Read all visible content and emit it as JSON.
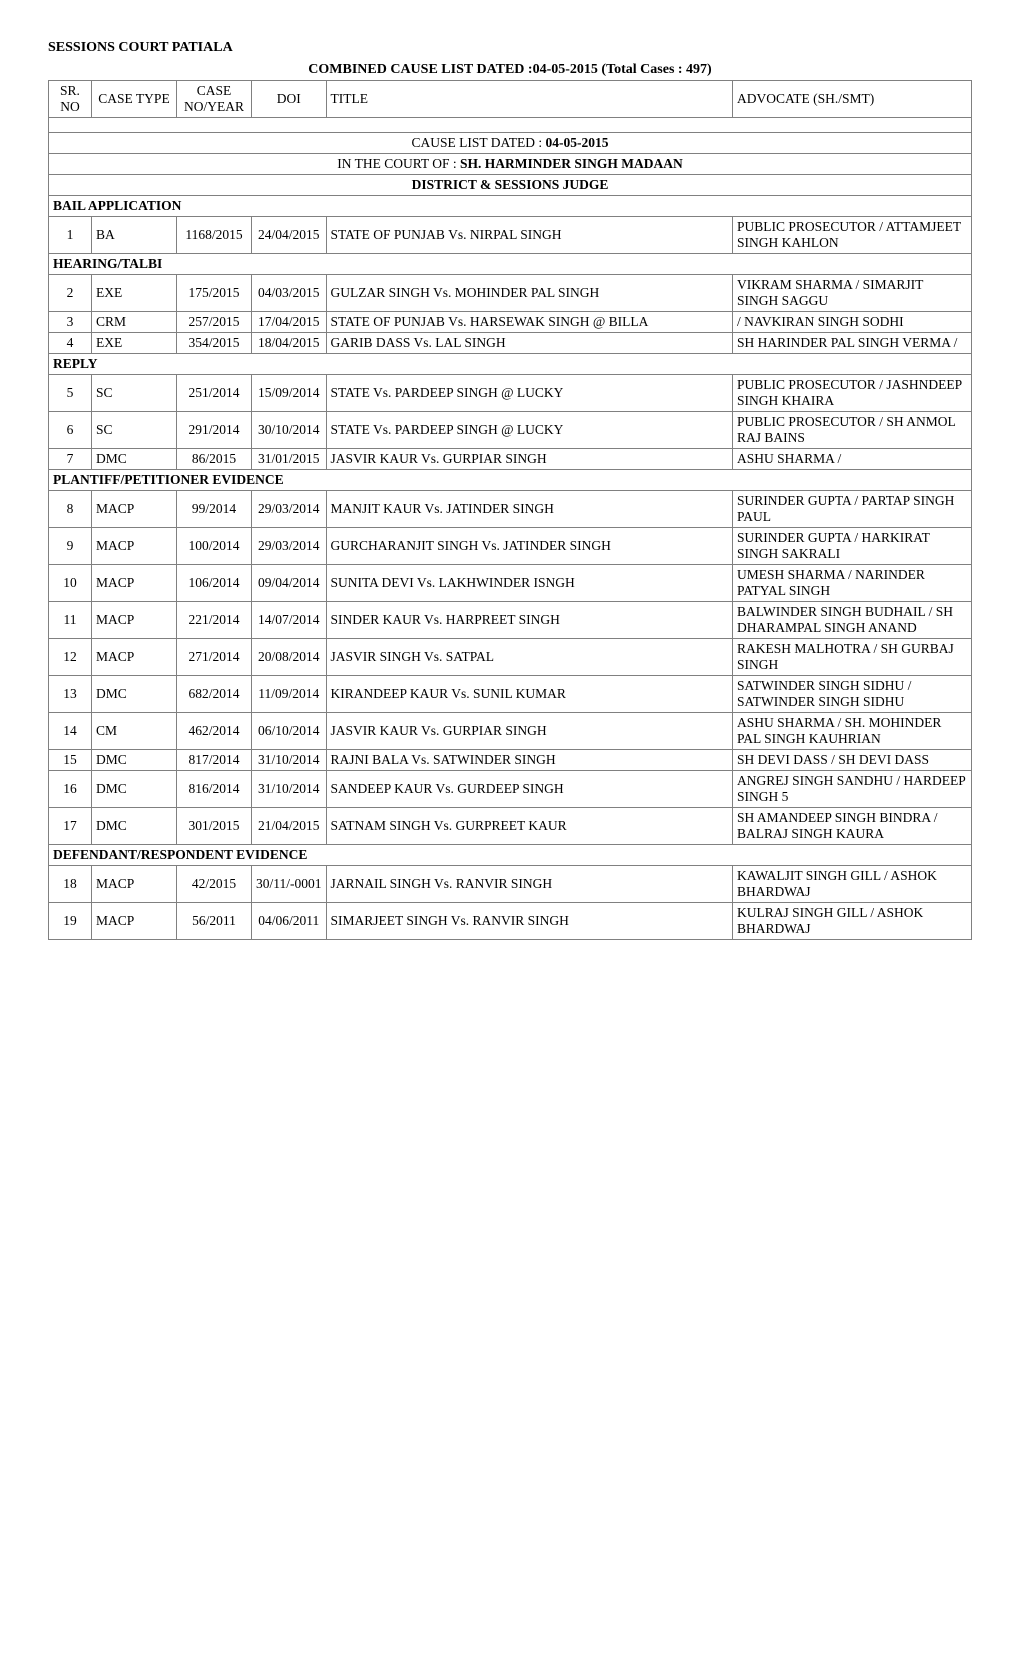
{
  "header": {
    "court_name": "SESSIONS COURT PATIALA",
    "list_title": "COMBINED CAUSE LIST DATED :04-05-2015 (Total Cases : 497)"
  },
  "columns": {
    "sr": "SR. NO",
    "case_type": "CASE TYPE",
    "case_no": "CASE NO/YEAR",
    "doi": "DOI",
    "title": "TITLE",
    "advocate": "ADVOCATE (SH./SMT)"
  },
  "court_header": {
    "cause_list_prefix": "CAUSE LIST DATED : ",
    "cause_list_date": "04-05-2015",
    "in_court_prefix": "IN THE COURT OF : ",
    "in_court_name": "SH. HARMINDER SINGH MADAAN",
    "judge_title": "DISTRICT & SESSIONS JUDGE"
  },
  "sections": [
    {
      "label": "BAIL APPLICATION",
      "rows": [
        {
          "sr": "1",
          "type": "BA",
          "case": "1168/2015",
          "doi": "24/04/2015",
          "title": "STATE OF PUNJAB Vs. NIRPAL SINGH",
          "adv": "PUBLIC PROSECUTOR / ATTAMJEET SINGH KAHLON"
        }
      ]
    },
    {
      "label": "HEARING/TALBI",
      "rows": [
        {
          "sr": "2",
          "type": "EXE",
          "case": "175/2015",
          "doi": "04/03/2015",
          "title": "GULZAR SINGH Vs. MOHINDER PAL SINGH",
          "adv": "VIKRAM SHARMA / SIMARJIT SINGH SAGGU"
        },
        {
          "sr": "3",
          "type": "CRM",
          "case": "257/2015",
          "doi": "17/04/2015",
          "title": "STATE OF PUNJAB Vs. HARSEWAK SINGH @ BILLA",
          "adv": "/ NAVKIRAN SINGH SODHI"
        },
        {
          "sr": "4",
          "type": "EXE",
          "case": "354/2015",
          "doi": "18/04/2015",
          "title": "GARIB DASS Vs. LAL SINGH",
          "adv": "SH HARINDER PAL SINGH VERMA /"
        }
      ]
    },
    {
      "label": "REPLY",
      "rows": [
        {
          "sr": "5",
          "type": "SC",
          "case": "251/2014",
          "doi": "15/09/2014",
          "title": "STATE Vs. PARDEEP SINGH @ LUCKY",
          "adv": "PUBLIC PROSECUTOR / JASHNDEEP SINGH KHAIRA"
        },
        {
          "sr": "6",
          "type": "SC",
          "case": "291/2014",
          "doi": "30/10/2014",
          "title": "STATE Vs. PARDEEP SINGH @ LUCKY",
          "adv": "PUBLIC PROSECUTOR / SH ANMOL RAJ BAINS"
        },
        {
          "sr": "7",
          "type": "DMC",
          "case": "86/2015",
          "doi": "31/01/2015",
          "title": "JASVIR KAUR Vs. GURPIAR SINGH",
          "adv": "ASHU SHARMA /"
        }
      ]
    },
    {
      "label": "PLANTIFF/PETITIONER EVIDENCE",
      "rows": [
        {
          "sr": "8",
          "type": "MACP",
          "case": "99/2014",
          "doi": "29/03/2014",
          "title": "MANJIT KAUR Vs. JATINDER SINGH",
          "adv": "SURINDER GUPTA / PARTAP SINGH PAUL"
        },
        {
          "sr": "9",
          "type": "MACP",
          "case": "100/2014",
          "doi": "29/03/2014",
          "title": "GURCHARANJIT SINGH Vs. JATINDER SINGH",
          "adv": "SURINDER GUPTA / HARKIRAT SINGH SAKRALI"
        },
        {
          "sr": "10",
          "type": "MACP",
          "case": "106/2014",
          "doi": "09/04/2014",
          "title": "SUNITA DEVI Vs. LAKHWINDER ISNGH",
          "adv": "UMESH SHARMA / NARINDER PATYAL SINGH"
        },
        {
          "sr": "11",
          "type": "MACP",
          "case": "221/2014",
          "doi": "14/07/2014",
          "title": "SINDER KAUR Vs. HARPREET SINGH",
          "adv": "BALWINDER SINGH BUDHAIL / SH DHARAMPAL SINGH ANAND"
        },
        {
          "sr": "12",
          "type": "MACP",
          "case": "271/2014",
          "doi": "20/08/2014",
          "title": "JASVIR SINGH Vs. SATPAL",
          "adv": "RAKESH MALHOTRA / SH GURBAJ SINGH"
        },
        {
          "sr": "13",
          "type": "DMC",
          "case": "682/2014",
          "doi": "11/09/2014",
          "title": "KIRANDEEP KAUR Vs. SUNIL KUMAR",
          "adv": "SATWINDER SINGH SIDHU / SATWINDER SINGH SIDHU"
        },
        {
          "sr": "14",
          "type": "CM",
          "case": "462/2014",
          "doi": "06/10/2014",
          "title": "JASVIR KAUR Vs. GURPIAR SINGH",
          "adv": "ASHU SHARMA / SH. MOHINDER PAL SINGH KAUHRIAN"
        },
        {
          "sr": "15",
          "type": "DMC",
          "case": "817/2014",
          "doi": "31/10/2014",
          "title": "RAJNI BALA Vs. SATWINDER SINGH",
          "adv": "SH DEVI DASS / SH DEVI DASS"
        },
        {
          "sr": "16",
          "type": "DMC",
          "case": "816/2014",
          "doi": "31/10/2014",
          "title": "SANDEEP KAUR Vs. GURDEEP SINGH",
          "adv": "ANGREJ SINGH SANDHU / HARDEEP SINGH 5"
        },
        {
          "sr": "17",
          "type": "DMC",
          "case": "301/2015",
          "doi": "21/04/2015",
          "title": "SATNAM SINGH Vs. GURPREET KAUR",
          "adv": "SH AMANDEEP SINGH BINDRA / BALRAJ SINGH KAURA"
        }
      ]
    },
    {
      "label": "DEFENDANT/RESPONDENT EVIDENCE",
      "rows": [
        {
          "sr": "18",
          "type": "MACP",
          "case": "42/2015",
          "doi": "30/11/-0001",
          "title": "JARNAIL SINGH Vs. RANVIR SINGH",
          "adv": "KAWALJIT SINGH GILL / ASHOK BHARDWAJ"
        },
        {
          "sr": "19",
          "type": "MACP",
          "case": "56/2011",
          "doi": "04/06/2011",
          "title": "SIMARJEET SINGH Vs. RANVIR SINGH",
          "adv": "KULRAJ SINGH GILL / ASHOK BHARDWAJ"
        }
      ]
    }
  ]
}
